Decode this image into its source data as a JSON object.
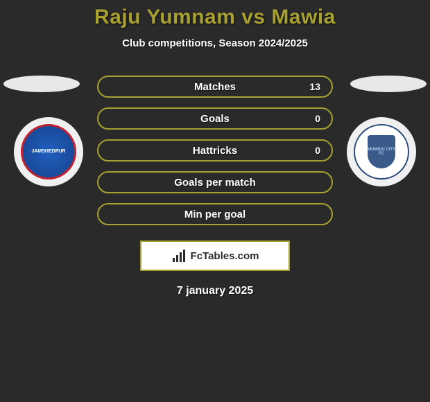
{
  "colors": {
    "accent": "#a8a030",
    "side_shape": "#e8e8e8",
    "background": "#2a2a2a",
    "text_white": "#ffffff"
  },
  "header": {
    "title": "Raju Yumnam vs Mawia",
    "subtitle": "Club competitions, Season 2024/2025"
  },
  "teams": {
    "left": {
      "name": "JAMSHEDPUR"
    },
    "right": {
      "name": "MUMBAI CITY FC"
    }
  },
  "stats": [
    {
      "label": "Matches",
      "value": "13",
      "show_value": true
    },
    {
      "label": "Goals",
      "value": "0",
      "show_value": true
    },
    {
      "label": "Hattricks",
      "value": "0",
      "show_value": true
    },
    {
      "label": "Goals per match",
      "value": "",
      "show_value": false
    },
    {
      "label": "Min per goal",
      "value": "",
      "show_value": false
    }
  ],
  "footer": {
    "brand": "FcTables.com",
    "date": "7 january 2025"
  },
  "styling": {
    "pill_border_color": "#a8a030",
    "title_fontsize": 30,
    "subtitle_fontsize": 15,
    "stat_label_fontsize": 15
  }
}
